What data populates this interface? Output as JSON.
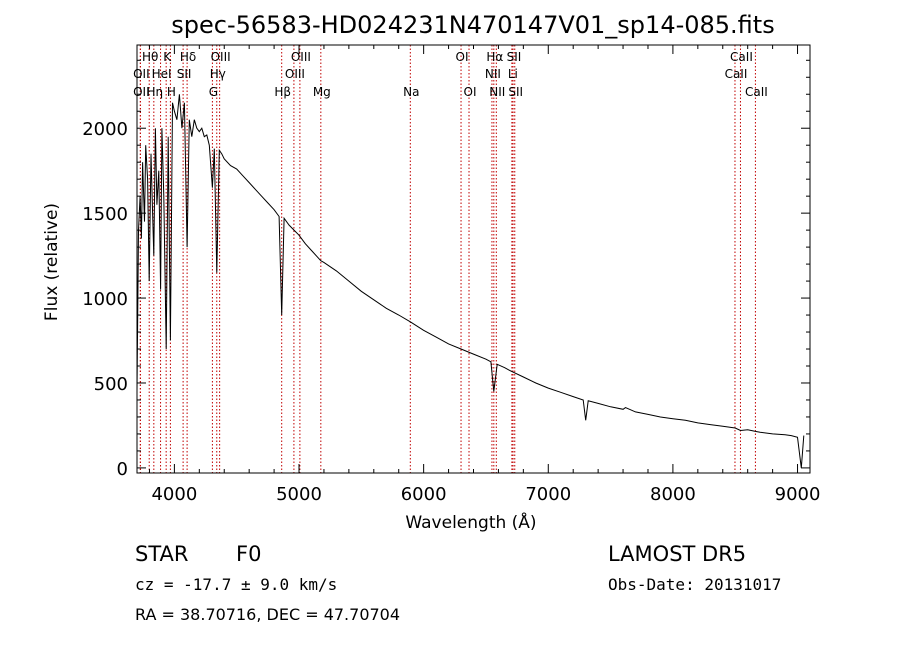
{
  "chart_data": {
    "type": "line",
    "title": "spec-56583-HD024231N470147V01_sp14-085.fits",
    "xlabel": "Wavelength (Å)",
    "ylabel": "Flux (relative)",
    "xlim": [
      3700,
      9100
    ],
    "ylim": [
      -30,
      2490
    ],
    "x_ticks": [
      4000,
      5000,
      6000,
      7000,
      8000,
      9000
    ],
    "y_ticks": [
      0,
      500,
      1000,
      1500,
      2000
    ],
    "spectral_lines": [
      {
        "label": "Hθ",
        "wavelength": 3798,
        "row": 0
      },
      {
        "label": "K",
        "wavelength": 3934,
        "row": 0
      },
      {
        "label": "Hδ",
        "wavelength": 4102,
        "row": 0
      },
      {
        "label": "OIII",
        "wavelength": 4363,
        "row": 0
      },
      {
        "label": "OIII",
        "wavelength": 5007,
        "row": 0
      },
      {
        "label": "OI",
        "wavelength": 6300,
        "row": 0
      },
      {
        "label": "Hα",
        "wavelength": 6563,
        "row": 0
      },
      {
        "label": "SII",
        "wavelength": 6717,
        "row": 0
      },
      {
        "label": "CaII",
        "wavelength": 8542,
        "row": 0
      },
      {
        "label": "OII",
        "wavelength": 3727,
        "row": 1
      },
      {
        "label": "HeI",
        "wavelength": 3889,
        "row": 1
      },
      {
        "label": "SII",
        "wavelength": 4070,
        "row": 1
      },
      {
        "label": "Hγ",
        "wavelength": 4340,
        "row": 1
      },
      {
        "label": "OIII",
        "wavelength": 4959,
        "row": 1
      },
      {
        "label": "NII",
        "wavelength": 6548,
        "row": 1
      },
      {
        "label": "Li",
        "wavelength": 6708,
        "row": 1
      },
      {
        "label": "CaII",
        "wavelength": 8498,
        "row": 1
      },
      {
        "label": "OII",
        "wavelength": 3727,
        "row": 2
      },
      {
        "label": "Hη",
        "wavelength": 3835,
        "row": 2
      },
      {
        "label": "H",
        "wavelength": 3968,
        "row": 2
      },
      {
        "label": "G",
        "wavelength": 4305,
        "row": 2
      },
      {
        "label": "Hβ",
        "wavelength": 4861,
        "row": 2
      },
      {
        "label": "Mg",
        "wavelength": 5175,
        "row": 2
      },
      {
        "label": "Na",
        "wavelength": 5893,
        "row": 2
      },
      {
        "label": "OI",
        "wavelength": 6364,
        "row": 2
      },
      {
        "label": "NII",
        "wavelength": 6583,
        "row": 2
      },
      {
        "label": "SII",
        "wavelength": 6731,
        "row": 2
      },
      {
        "label": "CaII",
        "wavelength": 8662,
        "row": 2
      }
    ],
    "series": [
      {
        "x": [
          3700,
          3712,
          3725,
          3735,
          3745,
          3760,
          3770,
          3785,
          3798,
          3812,
          3825,
          3835,
          3848,
          3860,
          3875,
          3889,
          3900,
          3915,
          3934,
          3950,
          3968,
          3985,
          4000,
          4020,
          4040,
          4060,
          4080,
          4102,
          4120,
          4140,
          4160,
          4180,
          4200,
          4220,
          4240,
          4260,
          4280,
          4305,
          4320,
          4340,
          4360,
          4380,
          4400,
          4450,
          4500,
          4550,
          4600,
          4650,
          4700,
          4750,
          4800,
          4840,
          4861,
          4880,
          4920,
          4960,
          5000,
          5050,
          5100,
          5150,
          5175,
          5200,
          5300,
          5400,
          5500,
          5600,
          5700,
          5800,
          5893,
          6000,
          6100,
          6200,
          6300,
          6400,
          6500,
          6540,
          6563,
          6590,
          6650,
          6700,
          6800,
          6900,
          7000,
          7100,
          7200,
          7280,
          7300,
          7320,
          7400,
          7500,
          7600,
          7620,
          7700,
          7800,
          7900,
          8000,
          8100,
          8200,
          8300,
          8400,
          8500,
          8542,
          8600,
          8662,
          8700,
          8800,
          8900,
          8950,
          9000,
          9030,
          9050
        ],
        "y": [
          450,
          1400,
          1600,
          1350,
          1800,
          1450,
          1900,
          1700,
          1100,
          1850,
          1500,
          1250,
          2000,
          1550,
          1750,
          1050,
          2000,
          1600,
          700,
          1950,
          750,
          2150,
          2100,
          2050,
          2200,
          2000,
          2150,
          1300,
          2050,
          1950,
          2050,
          2000,
          1980,
          2000,
          1950,
          1960,
          1900,
          1650,
          1880,
          1150,
          1870,
          1850,
          1820,
          1780,
          1760,
          1720,
          1680,
          1640,
          1600,
          1560,
          1520,
          1480,
          900,
          1470,
          1430,
          1400,
          1370,
          1320,
          1280,
          1240,
          1220,
          1210,
          1160,
          1100,
          1040,
          990,
          940,
          900,
          860,
          810,
          770,
          730,
          700,
          670,
          640,
          625,
          450,
          610,
          590,
          570,
          535,
          500,
          470,
          445,
          420,
          400,
          280,
          395,
          380,
          360,
          345,
          355,
          330,
          315,
          300,
          290,
          280,
          265,
          255,
          245,
          235,
          220,
          225,
          215,
          210,
          200,
          195,
          190,
          180,
          0,
          190
        ]
      }
    ]
  },
  "info": {
    "object_class": "STAR",
    "subclass": "F0",
    "survey": "LAMOST DR5",
    "cz": "cz = -17.7 ± 9.0 km/s",
    "obs_date": "Obs-Date: 20131017",
    "coords": "RA =  38.70716, DEC =  47.70704"
  }
}
